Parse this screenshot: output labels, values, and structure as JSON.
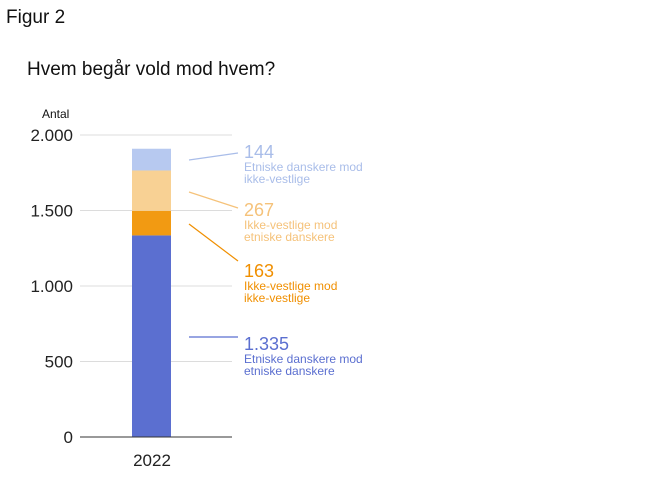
{
  "figure_label": "Figur 2",
  "chart_data": {
    "type": "bar",
    "stacked": true,
    "title": "Hvem begår vold mod hvem?",
    "ylabel": "Antal",
    "xlabel": "",
    "categories": [
      "2022"
    ],
    "ylim": [
      0,
      2000
    ],
    "yticks": [
      {
        "value": 0,
        "label": "0"
      },
      {
        "value": 500,
        "label": "500"
      },
      {
        "value": 1000,
        "label": "1.000"
      },
      {
        "value": 1500,
        "label": "1.500"
      },
      {
        "value": 2000,
        "label": "2.000"
      }
    ],
    "series": [
      {
        "name": "Etniske danskere mod etniske danskere",
        "line1": "Etniske danskere mod",
        "line2": "etniske danskere",
        "label": "1.335",
        "values": [
          1335
        ],
        "color": "#5b6fd0"
      },
      {
        "name": "Ikke-vestlige mod ikke-vestlige",
        "line1": "Ikke-vestlige mod",
        "line2": "ikke-vestlige",
        "label": "163",
        "values": [
          163
        ],
        "color": "#f29a12"
      },
      {
        "name": "Ikke-vestlige mod etniske danskere",
        "line1": "Ikke-vestlige mod",
        "line2": "etniske danskere",
        "label": "267",
        "values": [
          267
        ],
        "color": "#f8d194"
      },
      {
        "name": "Etniske danskere mod ikke-vestlige",
        "line1": "Etniske danskere mod",
        "line2": "ikke-vestlige",
        "label": "144",
        "values": [
          144
        ],
        "color": "#b7c9f0"
      }
    ],
    "label_colors": [
      "#5b6fd0",
      "#f08f00",
      "#f5c27a",
      "#a9bde9"
    ]
  }
}
